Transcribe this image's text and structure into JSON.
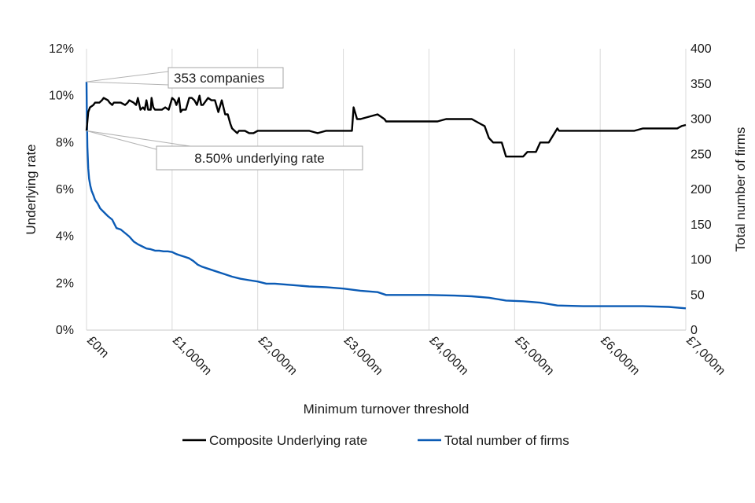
{
  "chart_data": {
    "type": "line",
    "title": "",
    "xlabel": "Minimum turnover threshold",
    "ylabel_left": "Underlying rate",
    "ylabel_right": "Total number of firms",
    "xlim": [
      0,
      7000
    ],
    "ylim_left": [
      0,
      12
    ],
    "ylim_right": [
      0,
      400
    ],
    "x_ticks": [
      0,
      1000,
      2000,
      3000,
      4000,
      5000,
      6000,
      7000
    ],
    "x_tick_labels": [
      "£0m",
      "£1,000m",
      "£2,000m",
      "£3,000m",
      "£4,000m",
      "£5,000m",
      "£6,000m",
      "£7,000m"
    ],
    "y_left_ticks": [
      0,
      2,
      4,
      6,
      8,
      10,
      12
    ],
    "y_left_tick_labels": [
      "0%",
      "2%",
      "4%",
      "6%",
      "8%",
      "10%",
      "12%"
    ],
    "y_right_ticks": [
      0,
      50,
      100,
      150,
      200,
      250,
      300,
      350,
      400
    ],
    "y_right_tick_labels": [
      "0",
      "50",
      "100",
      "150",
      "200",
      "250",
      "300",
      "350",
      "400"
    ],
    "grid": "vertical",
    "legend_position": "bottom",
    "series": [
      {
        "name": "Composite Underlying rate",
        "axis": "left",
        "color": "#000000",
        "x": [
          0,
          20,
          40,
          80,
          100,
          150,
          180,
          200,
          250,
          270,
          300,
          320,
          350,
          380,
          400,
          450,
          480,
          500,
          550,
          580,
          600,
          630,
          660,
          680,
          700,
          720,
          750,
          760,
          780,
          800,
          850,
          880,
          920,
          960,
          1000,
          1030,
          1050,
          1080,
          1100,
          1120,
          1160,
          1200,
          1230,
          1260,
          1290,
          1320,
          1340,
          1360,
          1380,
          1420,
          1460,
          1480,
          1500,
          1540,
          1580,
          1620,
          1630,
          1650,
          1680,
          1700,
          1730,
          1760,
          1780,
          1800,
          1850,
          1900,
          1950,
          2000,
          2100,
          2200,
          2300,
          2400,
          2500,
          2600,
          2700,
          2800,
          2900,
          3000,
          3100,
          3120,
          3160,
          3200,
          3300,
          3400,
          3480,
          3500,
          3600,
          3700,
          3800,
          3900,
          4000,
          4100,
          4200,
          4300,
          4400,
          4500,
          4550,
          4600,
          4650,
          4700,
          4750,
          4850,
          4900,
          5000,
          5100,
          5150,
          5250,
          5300,
          5400,
          5500,
          5520,
          5600,
          5700,
          5800,
          5900,
          6000,
          6100,
          6200,
          6300,
          6400,
          6500,
          6600,
          6700,
          6800,
          6900,
          6950,
          7000
        ],
        "values": [
          8.5,
          9.3,
          9.5,
          9.6,
          9.7,
          9.7,
          9.8,
          9.9,
          9.8,
          9.7,
          9.6,
          9.7,
          9.7,
          9.7,
          9.7,
          9.6,
          9.7,
          9.8,
          9.7,
          9.6,
          9.9,
          9.4,
          9.5,
          9.4,
          9.8,
          9.4,
          9.4,
          9.9,
          9.5,
          9.4,
          9.4,
          9.4,
          9.5,
          9.4,
          9.9,
          9.8,
          9.6,
          9.9,
          9.3,
          9.4,
          9.4,
          9.9,
          9.9,
          9.8,
          9.6,
          10.0,
          9.6,
          9.6,
          9.7,
          9.9,
          9.8,
          9.8,
          9.8,
          9.3,
          9.8,
          9.2,
          9.2,
          9.2,
          8.8,
          8.6,
          8.5,
          8.4,
          8.5,
          8.5,
          8.5,
          8.4,
          8.4,
          8.5,
          8.5,
          8.5,
          8.5,
          8.5,
          8.5,
          8.5,
          8.4,
          8.5,
          8.5,
          8.5,
          8.5,
          9.5,
          9.0,
          9.0,
          9.1,
          9.2,
          9.0,
          8.9,
          8.9,
          8.9,
          8.9,
          8.9,
          8.9,
          8.9,
          9.0,
          9.0,
          9.0,
          9.0,
          8.9,
          8.8,
          8.7,
          8.2,
          8.0,
          8.0,
          7.4,
          7.4,
          7.4,
          7.6,
          7.6,
          8.0,
          8.0,
          8.6,
          8.5,
          8.5,
          8.5,
          8.5,
          8.5,
          8.5,
          8.5,
          8.5,
          8.5,
          8.5,
          8.6,
          8.6,
          8.6,
          8.6,
          8.6,
          8.7,
          8.75
        ]
      },
      {
        "name": "Total number of firms",
        "axis": "right",
        "color": "#0b5bb5",
        "x": [
          0,
          5,
          10,
          20,
          30,
          45,
          60,
          80,
          100,
          130,
          160,
          200,
          250,
          300,
          350,
          400,
          450,
          500,
          550,
          600,
          650,
          700,
          750,
          800,
          850,
          900,
          950,
          1000,
          1050,
          1100,
          1150,
          1200,
          1250,
          1300,
          1350,
          1400,
          1500,
          1600,
          1700,
          1800,
          1900,
          2000,
          2100,
          2200,
          2400,
          2600,
          2800,
          3000,
          3200,
          3400,
          3500,
          3800,
          4000,
          4300,
          4500,
          4700,
          4900,
          5100,
          5300,
          5500,
          5800,
          6000,
          6300,
          6500,
          6800,
          7000
        ],
        "values": [
          353,
          300,
          260,
          230,
          215,
          205,
          198,
          192,
          185,
          180,
          173,
          168,
          162,
          157,
          145,
          143,
          138,
          133,
          126,
          122,
          119,
          116,
          115,
          113,
          113,
          112,
          112,
          111,
          108,
          106,
          104,
          102,
          98,
          93,
          90,
          88,
          84,
          80,
          76,
          73,
          71,
          69,
          66,
          66,
          64,
          62,
          61,
          59,
          56,
          54,
          50,
          50,
          50,
          49,
          48,
          46,
          42,
          41,
          39,
          35,
          34,
          34,
          34,
          34,
          33,
          31
        ]
      }
    ],
    "annotations": [
      {
        "text": "353 companies",
        "x": 0,
        "y": 353,
        "axis": "right"
      },
      {
        "text": "8.50% underlying rate",
        "x": 0,
        "y": 8.5,
        "axis": "left"
      }
    ]
  }
}
